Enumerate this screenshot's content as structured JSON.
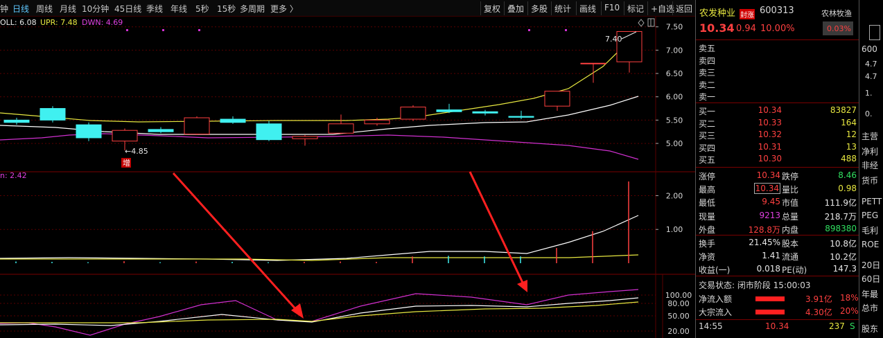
{
  "toolbar": {
    "periods": [
      {
        "label": "钟",
        "active": false
      },
      {
        "label": "日线",
        "active": true
      },
      {
        "label": "周线",
        "active": false
      },
      {
        "label": "月线",
        "active": false
      },
      {
        "label": "10分钟",
        "active": false
      },
      {
        "label": "45日线",
        "active": false
      },
      {
        "label": "季线",
        "active": false
      },
      {
        "label": "年线",
        "active": false
      },
      {
        "label": "5秒",
        "active": false
      },
      {
        "label": "15秒",
        "active": false
      },
      {
        "label": "多周期",
        "active": false
      },
      {
        "label": "更多 〉",
        "active": false
      }
    ],
    "tools": [
      "复权",
      "叠加",
      "多股",
      "统计",
      "画线",
      "F10",
      "标记",
      "+自选",
      "返回"
    ]
  },
  "chart": {
    "boll_label": "OLL: 6.08",
    "upr_label": "UPR: 7.48",
    "dwn_label": "DWN: 4.69",
    "high_annotation": "7.40",
    "low_annotation": "←4.85",
    "marker_text": "增",
    "volume_label": "n: 2.42",
    "price_ticks": [
      "7.50",
      "7.00",
      "6.50",
      "6.00",
      "5.50",
      "5.00"
    ],
    "volume_ticks": [
      "2.00",
      "1.00"
    ],
    "indicator_ticks": [
      "100.00",
      "80.00",
      "50.00",
      "20.00"
    ]
  },
  "chart_data": {
    "type": "candlestick",
    "price_axis": [
      4.6,
      7.6
    ],
    "candles": [
      {
        "open": 5.5,
        "close": 5.45,
        "high": 5.55,
        "low": 5.4
      },
      {
        "open": 5.75,
        "close": 5.5,
        "high": 5.8,
        "low": 5.45
      },
      {
        "open": 5.4,
        "close": 5.12,
        "high": 5.45,
        "low": 5.05
      },
      {
        "open": 5.05,
        "close": 5.28,
        "high": 5.32,
        "low": 4.85
      },
      {
        "open": 5.3,
        "close": 5.25,
        "high": 5.35,
        "low": 5.22
      },
      {
        "open": 5.2,
        "close": 5.55,
        "high": 5.58,
        "low": 5.18
      },
      {
        "open": 5.52,
        "close": 5.45,
        "high": 5.58,
        "low": 5.42
      },
      {
        "open": 5.42,
        "close": 5.08,
        "high": 5.48,
        "low": 5.05
      },
      {
        "open": 5.1,
        "close": 5.15,
        "high": 5.18,
        "low": 4.95
      },
      {
        "open": 5.22,
        "close": 5.42,
        "high": 5.62,
        "low": 5.2
      },
      {
        "open": 5.42,
        "close": 5.5,
        "high": 5.55,
        "low": 5.38
      },
      {
        "open": 5.52,
        "close": 5.78,
        "high": 5.82,
        "low": 5.48
      },
      {
        "open": 5.72,
        "close": 5.68,
        "high": 5.85,
        "low": 5.65
      },
      {
        "open": 5.68,
        "close": 5.65,
        "high": 5.72,
        "low": 5.6
      },
      {
        "open": 5.58,
        "close": 5.56,
        "high": 5.7,
        "low": 5.52
      },
      {
        "open": 5.8,
        "close": 6.12,
        "high": 6.12,
        "low": 5.7
      },
      {
        "open": 6.72,
        "close": 6.72,
        "high": 6.72,
        "low": 6.3
      },
      {
        "open": 6.75,
        "close": 7.4,
        "high": 7.4,
        "low": 6.52
      }
    ],
    "volume_axis": [
      0,
      2.42
    ],
    "volumes": [
      0.05,
      0.04,
      0.03,
      0.06,
      0.03,
      0.05,
      0.04,
      0.03,
      0.04,
      0.05,
      0.04,
      0.2,
      0.22,
      0.2,
      0.2,
      0.45,
      0.95,
      2.42
    ]
  },
  "stock": {
    "name": "农发种业",
    "tag": "封涨",
    "code": "600313",
    "sector": "农林牧渔",
    "sector_change": "0.03%",
    "price": "10.34",
    "change": "0.94",
    "change_pct": "10.00%"
  },
  "orderbook": {
    "asks": [
      {
        "label": "卖五",
        "price": "",
        "volume": ""
      },
      {
        "label": "卖四",
        "price": "",
        "volume": ""
      },
      {
        "label": "卖三",
        "price": "",
        "volume": ""
      },
      {
        "label": "卖二",
        "price": "",
        "volume": ""
      },
      {
        "label": "卖一",
        "price": "",
        "volume": ""
      }
    ],
    "bids": [
      {
        "label": "买一",
        "price": "10.34",
        "volume": "83827"
      },
      {
        "label": "买二",
        "price": "10.33",
        "volume": "164"
      },
      {
        "label": "买三",
        "price": "10.32",
        "volume": "12"
      },
      {
        "label": "买四",
        "price": "10.31",
        "volume": "13"
      },
      {
        "label": "买五",
        "price": "10.30",
        "volume": "488"
      }
    ]
  },
  "stats1": [
    {
      "l1": "涨停",
      "v1": "10.34",
      "l2": "跌停",
      "v2": "8.46"
    },
    {
      "l1": "最高",
      "v1": "10.34",
      "l2": "量比",
      "v2": "0.98"
    },
    {
      "l1": "最低",
      "v1": "9.45",
      "l2": "市值",
      "v2": "111.9亿"
    },
    {
      "l1": "现量",
      "v1": "9213",
      "l2": "总量",
      "v2": "218.7万"
    },
    {
      "l1": "外盘",
      "v1": "128.8万",
      "l2": "内盘",
      "v2": "898380"
    }
  ],
  "stats2": [
    {
      "l1": "换手",
      "v1": "21.45%",
      "l2": "股本",
      "v2": "10.8亿"
    },
    {
      "l1": "净资",
      "v1": "1.41",
      "l2": "流通",
      "v2": "10.2亿"
    },
    {
      "l1": "收益(一)",
      "v1": "0.018",
      "l2": "PE(动)",
      "v2": "147.3"
    }
  ],
  "trade_status": "交易状态: 闭市阶段 15:00:03",
  "flows": [
    {
      "label": "净流入额",
      "value": "3.91亿",
      "pct": "18%"
    },
    {
      "label": "大宗流入",
      "value": "4.30亿",
      "pct": "20%"
    }
  ],
  "ticks": [
    {
      "time": "14:55",
      "price": "10.34",
      "vol": "237",
      "side": "S"
    }
  ],
  "side_panel": {
    "items": [
      "600",
      "4.7",
      "4.7",
      "1.",
      "0.",
      "主营",
      "净利",
      "非经",
      "货币",
      "PETT",
      "PEG",
      "毛利",
      "ROE",
      "20日",
      "60日",
      "年最",
      "总市",
      "股东"
    ]
  },
  "colors": {
    "up": "#ff4040",
    "down": "#40f0f0",
    "ma_white": "#ffffff",
    "ma_yellow": "#e8e840",
    "ma_magenta": "#d030d0",
    "arrow": "#ff2020"
  }
}
